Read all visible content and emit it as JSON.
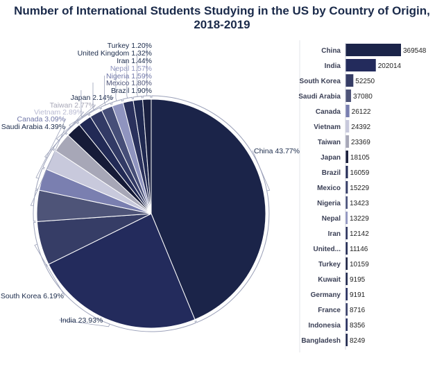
{
  "title": "Number of International Students Studying in the US by Country of Origin, 2018-2019",
  "chart_data": [
    {
      "type": "pie",
      "labels": [
        "China",
        "India",
        "South Korea",
        "Saudi Arabia",
        "Canada",
        "Vietnam",
        "Taiwan",
        "Japan",
        "Brazil",
        "Mexico",
        "Nigeria",
        "Nepal",
        "Iran",
        "United Kingdom",
        "Turkey"
      ],
      "values": [
        43.77,
        23.93,
        6.19,
        4.39,
        3.09,
        2.89,
        2.77,
        2.14,
        1.9,
        1.8,
        1.59,
        1.57,
        1.44,
        1.32,
        1.2
      ],
      "slice_labels": [
        "China 43.77%",
        "India 23.93%",
        "South Korea 6.19%",
        "Saudi Arabia 4.39%",
        "Canada 3.09%",
        "Vietnam 2.89%",
        "Taiwan 2.77%",
        "Japan 2.14%",
        "Brazil 1.90%",
        "Mexico 1.80%",
        "Nigeria 1.59%",
        "Nepal 1.57%",
        "Iran 1.44%",
        "United Kingdom 1.32%",
        "Turkey 1.20%"
      ],
      "colors": [
        "#1b2449",
        "#232b5c",
        "#363d66",
        "#4e5478",
        "#7a7fb0",
        "#c8c9dc",
        "#a7a7b7",
        "#161b38",
        "#222a55",
        "#323a65",
        "#464e78",
        "#8f94bf",
        "#2a315c",
        "#1f2850",
        "#1a2040"
      ]
    },
    {
      "type": "bar",
      "orientation": "horizontal",
      "categories": [
        "China",
        "India",
        "South Korea",
        "Saudi Arabia",
        "Canada",
        "Vietnam",
        "Taiwan",
        "Japan",
        "Brazil",
        "Mexico",
        "Nigeria",
        "Nepal",
        "Iran",
        "United...",
        "Turkey",
        "Kuwait",
        "Germany",
        "France",
        "Indonesia",
        "Bangladesh"
      ],
      "values": [
        369548,
        202014,
        52250,
        37080,
        26122,
        24392,
        23369,
        18105,
        16059,
        15229,
        13423,
        13229,
        12142,
        11146,
        10159,
        9195,
        9191,
        8716,
        8356,
        8249
      ],
      "value_labels": [
        "369548",
        "202014",
        "52250",
        "37080",
        "26122",
        "24392",
        "23369",
        "18105",
        "16059",
        "15229",
        "13423",
        "13229",
        "12142",
        "11146",
        "10159",
        "9195",
        "9191",
        "8716",
        "8356",
        "8249"
      ],
      "colors": [
        "#1b2449",
        "#232b5c",
        "#363d66",
        "#4e5478",
        "#7a7fb0",
        "#c8c9dc",
        "#a7a7b7",
        "#161b38",
        "#222a55",
        "#323a65",
        "#464e78",
        "#8f94bf",
        "#2a315c",
        "#1f2850",
        "#1a2040",
        "#1b2449",
        "#232b5c",
        "#363d66",
        "#232b5c",
        "#1b2449"
      ]
    }
  ]
}
